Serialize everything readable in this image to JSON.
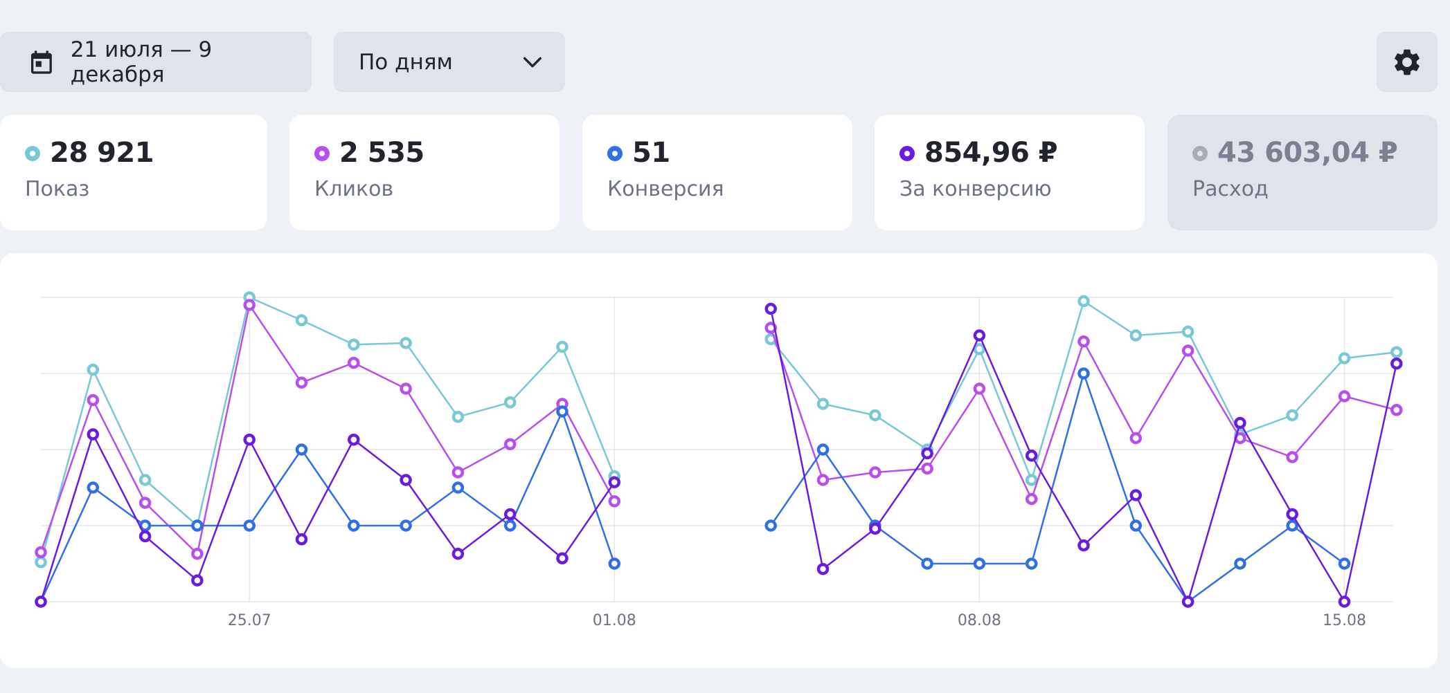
{
  "toolbar": {
    "date_range": "21 июля — 9 декабря",
    "grouping": "По дням",
    "calendar_icon": "calendar-icon",
    "chevron_icon": "chevron-down-icon",
    "settings_icon": "gear-icon"
  },
  "metrics": [
    {
      "value": "28 921",
      "label": "Показ",
      "color": "#78c8d6",
      "active": true
    },
    {
      "value": "2 535",
      "label": "Кликов",
      "color": "#b84df0",
      "active": true
    },
    {
      "value": "51",
      "label": "Конверсия",
      "color": "#2f6fe8",
      "active": true
    },
    {
      "value": "854,96 ₽",
      "label": "За конверсию",
      "color": "#6a1be0",
      "active": true
    },
    {
      "value": "43 603,04 ₽",
      "label": "Расход",
      "color": "#a7adb8",
      "active": false
    }
  ],
  "chart_data": {
    "type": "line",
    "x": [
      "21.07",
      "22.07",
      "23.07",
      "24.07",
      "25.07",
      "26.07",
      "27.07",
      "28.07",
      "29.07",
      "30.07",
      "31.07",
      "01.08",
      "02.08",
      "03.08",
      "04.08",
      "05.08",
      "06.08",
      "07.08",
      "08.08",
      "09.08",
      "10.08",
      "11.08",
      "12.08",
      "13.08",
      "14.08",
      "15.08",
      "16.08"
    ],
    "x_tick_labels": [
      "25.07",
      "01.08",
      "08.08",
      "15.08"
    ],
    "ylim": [
      0,
      4
    ],
    "grid": true,
    "series": [
      {
        "color": "#78c8d6",
        "values": [
          0.52,
          3.05,
          1.6,
          1.0,
          4.0,
          3.7,
          3.38,
          3.4,
          2.43,
          2.62,
          3.35,
          1.65,
          null,
          null,
          3.45,
          2.6,
          2.45,
          2.0,
          3.32,
          1.6,
          3.95,
          3.5,
          3.55,
          2.2,
          2.45,
          3.2,
          3.28
        ]
      },
      {
        "color": "#b84df0",
        "values": [
          0.65,
          2.65,
          1.3,
          0.63,
          3.9,
          2.88,
          3.14,
          2.8,
          1.7,
          2.07,
          2.6,
          1.32,
          null,
          null,
          3.6,
          1.6,
          1.7,
          1.75,
          2.8,
          1.35,
          3.42,
          2.15,
          3.3,
          2.15,
          1.9,
          2.7,
          2.52
        ]
      },
      {
        "color": "#2f6fe8",
        "values": [
          0.0,
          1.5,
          1.0,
          1.0,
          1.0,
          2.0,
          1.0,
          1.0,
          1.5,
          1.0,
          2.5,
          0.5,
          null,
          null,
          1.0,
          2.0,
          1.0,
          0.5,
          0.5,
          0.5,
          3.0,
          1.0,
          0.0,
          0.5,
          1.0,
          0.5,
          null
        ]
      },
      {
        "color": "#6a1be0",
        "values": [
          0.0,
          2.2,
          0.86,
          0.28,
          2.13,
          0.82,
          2.13,
          1.6,
          0.63,
          1.15,
          0.57,
          1.57,
          null,
          null,
          3.85,
          0.43,
          0.96,
          1.95,
          3.5,
          1.92,
          0.74,
          1.4,
          0.0,
          2.35,
          1.15,
          0.0,
          3.13
        ]
      }
    ]
  }
}
